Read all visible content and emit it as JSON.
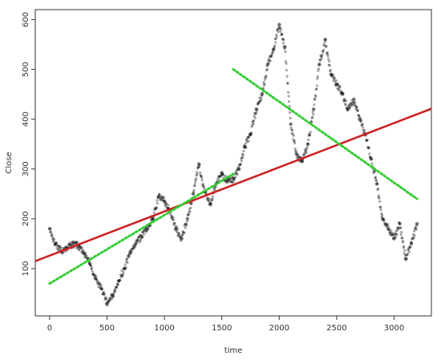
{
  "chart_data": {
    "type": "scatter",
    "title": "",
    "xlabel": "time",
    "ylabel": "Close",
    "xlim": [
      -125,
      3325
    ],
    "ylim": [
      5,
      620
    ],
    "x_ticks": [
      0,
      500,
      1000,
      1500,
      2000,
      2500,
      3000
    ],
    "y_ticks": [
      100,
      200,
      300,
      400,
      500,
      600
    ],
    "grid": false,
    "legend": "none",
    "series": [
      {
        "type": "scatter",
        "color": "#000000",
        "x": [
          0,
          50,
          100,
          150,
          200,
          250,
          300,
          350,
          400,
          450,
          500,
          550,
          600,
          650,
          700,
          750,
          800,
          850,
          900,
          950,
          1000,
          1050,
          1100,
          1150,
          1200,
          1250,
          1300,
          1350,
          1400,
          1450,
          1500,
          1550,
          1600,
          1650,
          1700,
          1750,
          1800,
          1850,
          1900,
          1950,
          2000,
          2050,
          2100,
          2150,
          2200,
          2250,
          2300,
          2350,
          2400,
          2450,
          2500,
          2550,
          2600,
          2650,
          2700,
          2750,
          2800,
          2850,
          2900,
          2950,
          3000,
          3050,
          3100,
          3150,
          3200
        ],
        "values": [
          180,
          150,
          135,
          140,
          150,
          145,
          130,
          110,
          80,
          60,
          30,
          45,
          75,
          100,
          130,
          150,
          165,
          180,
          200,
          245,
          235,
          215,
          180,
          160,
          200,
          250,
          310,
          255,
          230,
          270,
          290,
          275,
          280,
          300,
          345,
          370,
          420,
          450,
          510,
          540,
          590,
          545,
          390,
          330,
          315,
          350,
          420,
          510,
          560,
          490,
          470,
          450,
          420,
          440,
          400,
          370,
          320,
          270,
          200,
          180,
          160,
          190,
          120,
          150,
          190
        ]
      }
    ],
    "lines": [
      {
        "type": "line",
        "style": "solid",
        "color": "#cc2222",
        "x": [
          -125,
          3325
        ],
        "values": [
          115,
          421
        ]
      },
      {
        "type": "line",
        "style": "dotted",
        "color": "#33cc33",
        "x": [
          0,
          1600
        ],
        "values": [
          70,
          290
        ]
      },
      {
        "type": "line",
        "style": "dotted",
        "color": "#33cc33",
        "x": [
          1600,
          3200
        ],
        "values": [
          500,
          240
        ]
      }
    ]
  }
}
